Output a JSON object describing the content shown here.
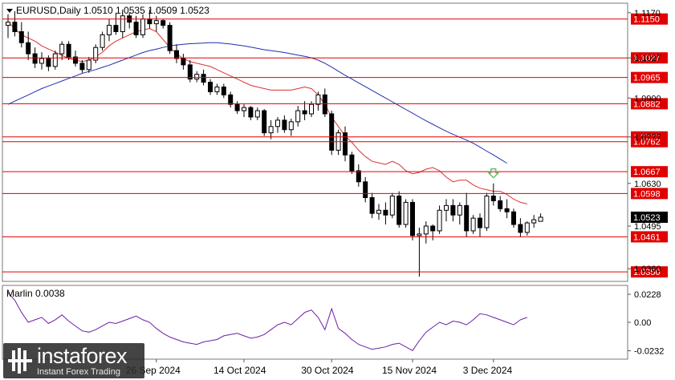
{
  "header": {
    "symbol": "EURUSD,Daily",
    "ohlc": "1.0510 1.0535 1.0509 1.0523"
  },
  "indicator": {
    "label": "Marlin 0.0038"
  },
  "watermark": {
    "name": "instaforex",
    "tagline": "Instant Forex Trading"
  },
  "colors": {
    "background": "#ffffff",
    "level_line": "#e00000",
    "price_label_bg": "#e00000",
    "current_price_bg": "#000000",
    "ma_slow": "#1f2fb0",
    "ma_fast": "#e03030",
    "oscillator": "#6a1fa8",
    "arrow": "#4caf50"
  },
  "chart_data": [
    {
      "type": "candlestick",
      "title": "EURUSD,Daily",
      "ylim": [
        1.032,
        1.12
      ],
      "y_ticks": [
        "1.1170",
        "1.1027",
        "1.0900",
        "1.0777",
        "1.0630",
        "1.0495",
        "1.0360"
      ],
      "x_ticks": [
        "26 Sep 2024",
        "14 Oct 2024",
        "30 Oct 2024",
        "15 Nov 2024",
        "3 Dec 2024"
      ],
      "x_tick_index": [
        22,
        35,
        48,
        60,
        72
      ],
      "levels": [
        "1.1150",
        "1.1027",
        "1.0965",
        "1.0882",
        "1.0777",
        "1.0762",
        "1.0667",
        "1.0598",
        "1.0461",
        "1.0350"
      ],
      "current_price": "1.0523",
      "candles": [
        [
          1.113,
          1.1165,
          1.109,
          1.114
        ],
        [
          1.114,
          1.1175,
          1.1095,
          1.111
        ],
        [
          1.111,
          1.114,
          1.106,
          1.1075
        ],
        [
          1.1075,
          1.111,
          1.102,
          1.104
        ],
        [
          1.104,
          1.106,
          1.0995,
          1.101
        ],
        [
          1.101,
          1.1045,
          1.099,
          1.1025
        ],
        [
          1.1025,
          1.1035,
          1.0985,
          1.1
        ],
        [
          1.1,
          1.105,
          1.099,
          1.104
        ],
        [
          1.104,
          1.108,
          1.102,
          1.107
        ],
        [
          1.107,
          1.108,
          1.102,
          1.103
        ],
        [
          1.103,
          1.105,
          1.1,
          1.101
        ],
        [
          1.101,
          1.102,
          1.098,
          1.099
        ],
        [
          1.099,
          1.103,
          1.098,
          1.102
        ],
        [
          1.102,
          1.107,
          1.101,
          1.106
        ],
        [
          1.106,
          1.111,
          1.105,
          1.11
        ],
        [
          1.11,
          1.115,
          1.108,
          1.113
        ],
        [
          1.113,
          1.117,
          1.11,
          1.111
        ],
        [
          1.111,
          1.118,
          1.109,
          1.116
        ],
        [
          1.116,
          1.117,
          1.112,
          1.114
        ],
        [
          1.114,
          1.116,
          1.109,
          1.11
        ],
        [
          1.11,
          1.1165,
          1.109,
          1.115
        ],
        [
          1.115,
          1.118,
          1.112,
          1.1135
        ],
        [
          1.1135,
          1.116,
          1.111,
          1.1145
        ],
        [
          1.1145,
          1.115,
          1.112,
          1.113
        ],
        [
          1.113,
          1.114,
          1.104,
          1.105
        ],
        [
          1.105,
          1.107,
          1.101,
          1.1025
        ],
        [
          1.1025,
          1.104,
          1.099,
          1.1005
        ],
        [
          1.1005,
          1.102,
          1.095,
          1.096
        ],
        [
          1.096,
          1.0985,
          1.095,
          1.0975
        ],
        [
          1.0975,
          1.099,
          1.094,
          1.095
        ],
        [
          1.095,
          1.096,
          1.091,
          1.092
        ],
        [
          1.092,
          1.0945,
          1.091,
          1.0935
        ],
        [
          1.0935,
          1.0945,
          1.09,
          1.091
        ],
        [
          1.091,
          1.092,
          1.087,
          1.088
        ],
        [
          1.088,
          1.089,
          1.085,
          1.086
        ],
        [
          1.086,
          1.088,
          1.084,
          1.087
        ],
        [
          1.087,
          1.0875,
          1.083,
          1.084
        ],
        [
          1.084,
          1.087,
          1.083,
          1.086
        ],
        [
          1.086,
          1.0865,
          1.078,
          1.079
        ],
        [
          1.079,
          1.083,
          1.077,
          1.081
        ],
        [
          1.081,
          1.084,
          1.079,
          1.083
        ],
        [
          1.083,
          1.0845,
          1.079,
          1.08
        ],
        [
          1.08,
          1.0835,
          1.078,
          1.0825
        ],
        [
          1.0825,
          1.0875,
          1.081,
          1.086
        ],
        [
          1.086,
          1.089,
          1.083,
          1.085
        ],
        [
          1.085,
          1.089,
          1.084,
          1.088
        ],
        [
          1.088,
          1.092,
          1.086,
          1.091
        ],
        [
          1.091,
          1.093,
          1.084,
          1.085
        ],
        [
          1.085,
          1.086,
          1.072,
          1.0735
        ],
        [
          1.0735,
          1.08,
          1.072,
          1.079
        ],
        [
          1.079,
          1.081,
          1.07,
          1.072
        ],
        [
          1.072,
          1.073,
          1.066,
          1.067
        ],
        [
          1.067,
          1.069,
          1.062,
          1.0635
        ],
        [
          1.0635,
          1.065,
          1.057,
          1.0585
        ],
        [
          1.0585,
          1.06,
          1.052,
          1.0535
        ],
        [
          1.0535,
          1.0565,
          1.0515,
          1.0545
        ],
        [
          1.0545,
          1.057,
          1.05,
          1.053
        ],
        [
          1.053,
          1.06,
          1.052,
          1.059
        ],
        [
          1.059,
          1.0605,
          1.049,
          1.05
        ],
        [
          1.05,
          1.058,
          1.049,
          1.057
        ],
        [
          1.057,
          1.058,
          1.045,
          1.0465
        ],
        [
          1.0465,
          1.049,
          1.0335,
          1.047
        ],
        [
          1.047,
          1.051,
          1.044,
          1.0495
        ],
        [
          1.0495,
          1.05,
          1.045,
          1.048
        ],
        [
          1.048,
          1.056,
          1.047,
          1.0545
        ],
        [
          1.0545,
          1.058,
          1.051,
          1.056
        ],
        [
          1.056,
          1.058,
          1.051,
          1.053
        ],
        [
          1.053,
          1.057,
          1.05,
          1.056
        ],
        [
          1.056,
          1.06,
          1.046,
          1.048
        ],
        [
          1.048,
          1.053,
          1.047,
          1.052
        ],
        [
          1.052,
          1.0535,
          1.046,
          1.049
        ],
        [
          1.049,
          1.06,
          1.048,
          1.059
        ],
        [
          1.059,
          1.063,
          1.056,
          1.0575
        ],
        [
          1.0575,
          1.059,
          1.054,
          1.055
        ],
        [
          1.055,
          1.058,
          1.052,
          1.054
        ],
        [
          1.054,
          1.055,
          1.049,
          1.05
        ],
        [
          1.05,
          1.052,
          1.046,
          1.0475
        ],
        [
          1.0475,
          1.051,
          1.0465,
          1.0505
        ],
        [
          1.0505,
          1.053,
          1.049,
          1.0515
        ],
        [
          1.051,
          1.0535,
          1.0509,
          1.0523
        ]
      ],
      "ma_fast": [
        1.114,
        1.112,
        1.11,
        1.109,
        1.108,
        1.1065,
        1.1055,
        1.1045,
        1.1035,
        1.1025,
        1.102,
        1.1015,
        1.102,
        1.103,
        1.1045,
        1.1065,
        1.108,
        1.109,
        1.11,
        1.111,
        1.1115,
        1.112,
        1.111,
        1.1085,
        1.106,
        1.104,
        1.1025,
        1.1015,
        1.101,
        1.1005,
        1.1,
        1.099,
        1.098,
        1.097,
        1.096,
        1.095,
        1.094,
        1.0935,
        1.093,
        1.0925,
        1.0925,
        1.0925,
        1.0925,
        1.093,
        1.0935,
        1.093,
        1.091,
        1.088,
        1.084,
        1.081,
        1.078,
        1.076,
        1.0735,
        1.0715,
        1.07,
        1.0695,
        1.069,
        1.07,
        1.069,
        1.067,
        1.066,
        1.0665,
        1.0675,
        1.068,
        1.067,
        1.065,
        1.0635,
        1.064,
        1.064,
        1.0625,
        1.0615,
        1.061,
        1.0605,
        1.0605,
        1.0595,
        1.058,
        1.057,
        1.0565
      ],
      "ma_slow": [
        1.088,
        1.089,
        1.09,
        1.091,
        1.092,
        1.093,
        1.0938,
        1.0946,
        1.0954,
        1.0962,
        1.097,
        1.0978,
        1.0984,
        1.099,
        1.0997,
        1.1004,
        1.1012,
        1.102,
        1.1028,
        1.1036,
        1.1044,
        1.105,
        1.1055,
        1.106,
        1.1065,
        1.1068,
        1.107,
        1.1072,
        1.1073,
        1.1074,
        1.1075,
        1.1075,
        1.1073,
        1.1071,
        1.1068,
        1.1065,
        1.1061,
        1.1057,
        1.1053,
        1.105,
        1.1047,
        1.1044,
        1.104,
        1.1036,
        1.1032,
        1.1027,
        1.102,
        1.101,
        1.0998,
        1.0985,
        1.0972,
        1.096,
        1.0948,
        1.0936,
        1.0924,
        1.0912,
        1.09,
        1.0888,
        1.0876,
        1.0864,
        1.0852,
        1.084,
        1.0828,
        1.0817,
        1.0806,
        1.0795,
        1.0785,
        1.0776,
        1.0767,
        1.0757,
        1.0745,
        1.0732,
        1.072,
        1.0707,
        1.0694
      ],
      "signal_arrow_index": 72
    },
    {
      "type": "line",
      "title": "Marlin 0.0038",
      "ylim": [
        -0.03,
        0.03
      ],
      "y_ticks": [
        "0.0228",
        "0.00",
        "-0.0232"
      ],
      "values": [
        0.024,
        0.018,
        0.008,
        0.0,
        0.002,
        0.004,
        -0.001,
        0.002,
        0.006,
        0.001,
        -0.003,
        -0.007,
        -0.008,
        -0.006,
        -0.003,
        0.0,
        -0.001,
        0.001,
        0.003,
        0.005,
        0.002,
        0.0,
        -0.005,
        -0.009,
        -0.012,
        -0.014,
        -0.016,
        -0.017,
        -0.018,
        -0.016,
        -0.015,
        -0.014,
        -0.011,
        -0.01,
        -0.009,
        -0.011,
        -0.013,
        -0.012,
        -0.01,
        -0.006,
        -0.002,
        0.0,
        -0.002,
        0.003,
        0.008,
        0.01,
        0.004,
        -0.006,
        0.011,
        -0.005,
        -0.009,
        -0.014,
        -0.018,
        -0.02,
        -0.022,
        -0.021,
        -0.02,
        -0.018,
        -0.017,
        -0.02,
        -0.023,
        -0.015,
        -0.008,
        -0.004,
        0.0,
        -0.002,
        0.001,
        0.0,
        -0.002,
        0.002,
        0.007,
        0.006,
        0.004,
        0.002,
        0.0,
        -0.002,
        0.002,
        0.004
      ]
    }
  ]
}
